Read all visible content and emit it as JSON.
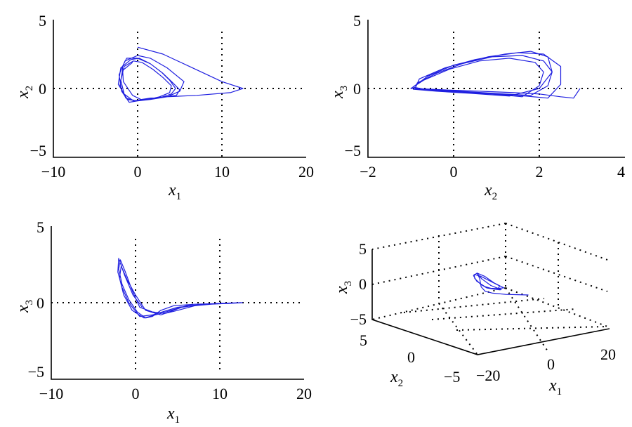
{
  "colors": {
    "trajectory": "#1f1fe0",
    "axes": "#000000"
  },
  "chart_data": [
    {
      "type": "line",
      "xlabel": "x",
      "xsub": "1",
      "ylabel": "x",
      "ysub": "2",
      "xlim": [
        -10,
        20
      ],
      "ylim": [
        -5,
        5
      ],
      "xticks": [
        -10,
        0,
        10,
        20
      ],
      "yticks": [
        -5,
        0,
        5
      ],
      "xtick_labels": [
        "−10",
        "0",
        "10",
        "20"
      ],
      "ytick_labels": [
        "−5",
        "0",
        "5"
      ],
      "grid": "dotted lines at x=0, x=10 and y=0",
      "series": [
        {
          "x": [
            0.0,
            3.0,
            6.5,
            10.0,
            12.5,
            11.0,
            7.0,
            3.5,
            1.5,
            0.4,
            -0.6,
            -1.7,
            -1.8,
            -1.3,
            0.0,
            1.5,
            3.0,
            4.2,
            5.0,
            4.6,
            3.2,
            1.8,
            0.6,
            -0.5,
            -1.6,
            -2.0,
            -1.6,
            -0.5,
            0.5,
            1.8,
            3.0,
            4.0,
            3.8,
            2.6,
            1.2,
            0.0,
            -1.0,
            -1.9,
            -2.2,
            -1.5,
            0.0,
            1.5,
            3.5,
            5.5,
            5.0,
            3.5,
            1.5,
            0.0,
            -1.2,
            -2.3,
            -2.0,
            -0.8,
            0.2,
            1.5,
            2.8,
            3.8,
            4.5,
            4.0,
            2.5,
            1.0,
            -0.2,
            -1.4,
            -2.1,
            -1.8,
            -0.6
          ],
          "y": [
            3.0,
            2.5,
            1.5,
            0.5,
            0.0,
            -0.3,
            -0.5,
            -0.6,
            -0.7,
            -0.8,
            -0.5,
            0.5,
            1.6,
            2.2,
            2.2,
            1.8,
            1.1,
            0.4,
            -0.1,
            -0.5,
            -0.6,
            -0.7,
            -0.8,
            -0.9,
            -0.4,
            0.6,
            1.6,
            2.0,
            1.9,
            1.4,
            0.8,
            0.2,
            -0.3,
            -0.6,
            -0.8,
            -0.9,
            -1.0,
            -0.2,
            1.0,
            2.0,
            2.4,
            2.2,
            1.5,
            0.5,
            -0.2,
            -0.6,
            -0.8,
            -0.9,
            -0.8,
            0.3,
            1.5,
            2.1,
            2.2,
            1.8,
            1.2,
            0.6,
            0.0,
            -0.4,
            -0.7,
            -0.8,
            -0.9,
            -0.7,
            0.2,
            1.3,
            1.9
          ]
        }
      ]
    },
    {
      "type": "line",
      "xlabel": "x",
      "xsub": "2",
      "ylabel": "x",
      "ysub": "3",
      "xlim": [
        -2,
        4
      ],
      "ylim": [
        -5,
        5
      ],
      "xticks": [
        -2,
        0,
        2,
        4
      ],
      "yticks": [
        -5,
        0,
        5
      ],
      "xtick_labels": [
        "−2",
        "0",
        "2",
        "4"
      ],
      "ytick_labels": [
        "−5",
        "0",
        "5"
      ],
      "grid": "dotted lines at x=0, x=2 and y=0",
      "series": [
        {
          "x": [
            2.95,
            2.8,
            2.5,
            2.0,
            1.4,
            0.6,
            -0.2,
            -0.9,
            -0.85,
            -0.4,
            0.2,
            0.9,
            1.6,
            2.1,
            2.3,
            2.2,
            1.8,
            1.2,
            0.4,
            -0.5,
            -1.0,
            -0.7,
            -0.1,
            0.6,
            1.3,
            1.9,
            2.1,
            2.0,
            1.6,
            0.9,
            0.1,
            -0.6,
            -0.95,
            -0.6,
            0.0,
            0.8,
            1.5,
            2.1,
            2.5,
            2.5,
            2.2,
            1.5,
            0.6,
            -0.3,
            -0.9,
            -0.8,
            -0.2,
            0.5,
            1.2,
            1.8,
            2.2,
            2.3,
            2.0,
            1.3,
            0.4,
            -0.4,
            -0.95
          ],
          "y": [
            0.0,
            -0.7,
            -0.6,
            -0.4,
            -0.3,
            -0.2,
            -0.1,
            0.0,
            0.4,
            1.1,
            1.8,
            2.3,
            2.4,
            2.0,
            1.2,
            0.2,
            -0.5,
            -0.4,
            -0.25,
            -0.1,
            0.0,
            0.6,
            1.4,
            2.0,
            2.2,
            1.9,
            1.2,
            0.2,
            -0.6,
            -0.4,
            -0.25,
            -0.1,
            0.1,
            0.9,
            1.7,
            2.3,
            2.6,
            2.5,
            1.6,
            0.3,
            -0.7,
            -0.5,
            -0.3,
            -0.15,
            0.0,
            0.7,
            1.5,
            2.1,
            2.5,
            2.7,
            2.3,
            1.2,
            0.0,
            -0.55,
            -0.35,
            -0.2,
            -0.05
          ]
        }
      ]
    },
    {
      "type": "line",
      "xlabel": "x",
      "xsub": "1",
      "ylabel": "x",
      "ysub": "3",
      "xlim": [
        -10,
        20
      ],
      "ylim": [
        -5,
        5
      ],
      "xticks": [
        -10,
        0,
        10,
        20
      ],
      "yticks": [
        -5,
        0,
        5
      ],
      "xtick_labels": [
        "−10",
        "0",
        "10",
        "20"
      ],
      "ytick_labels": [
        "−5",
        "0",
        "5"
      ],
      "grid": "dotted lines at x=0, x=10 and y=0",
      "series": [
        {
          "x": [
            12.7,
            10.0,
            7.0,
            4.5,
            3.0,
            2.0,
            1.2,
            0.2,
            -0.8,
            -1.6,
            -2.0,
            -1.8,
            -1.2,
            -0.4,
            0.5,
            2.0,
            3.5,
            5.0,
            7.0,
            9.5,
            12.5,
            10.0,
            6.0,
            3.0,
            1.0,
            -0.4,
            -1.4,
            -1.9,
            -1.7,
            -1.0,
            0.0,
            1.2,
            3.0,
            5.5,
            8.0,
            11.0,
            12.7,
            9.0,
            5.0,
            2.0,
            0.5,
            -0.8,
            -1.6,
            -2.1,
            -2.0,
            -1.3,
            -0.3,
            0.8
          ],
          "y": [
            0.0,
            -0.05,
            -0.1,
            -0.2,
            -0.5,
            -0.9,
            -1.0,
            -0.6,
            0.2,
            1.2,
            2.2,
            2.8,
            2.0,
            0.8,
            -0.3,
            -0.6,
            -0.7,
            -0.5,
            -0.2,
            -0.05,
            0.0,
            -0.05,
            -0.2,
            -0.7,
            -1.0,
            -0.5,
            0.5,
            1.6,
            2.4,
            1.5,
            0.5,
            -0.5,
            -0.8,
            -0.3,
            -0.1,
            -0.05,
            0.0,
            -0.1,
            -0.3,
            -0.8,
            -0.9,
            0.0,
            1.0,
            2.0,
            2.9,
            1.8,
            0.5,
            -0.3
          ]
        }
      ]
    },
    {
      "type": "line",
      "projection": "3d",
      "xlabel": "x",
      "xsub": "1",
      "ylabel": "x",
      "ysub": "2",
      "zlabel": "x",
      "zsub": "3",
      "xlim": [
        -20,
        20
      ],
      "ylim": [
        -5,
        5
      ],
      "zlim": [
        -5,
        5
      ],
      "xticks": [
        -20,
        0,
        20
      ],
      "yticks": [
        -5,
        0,
        5
      ],
      "zticks": [
        -5,
        0,
        5
      ],
      "xtick_labels": [
        "−20",
        "0",
        "20"
      ],
      "ytick_labels": [
        "−5",
        "0",
        "5"
      ],
      "ztick_labels": [
        "−5",
        "0",
        "5"
      ],
      "grid": "dotted 3D box grid",
      "series": [
        {
          "x": [
            12.5,
            10.0,
            7.0,
            3.5,
            1.0,
            -0.8,
            -1.8,
            -1.5,
            -0.5,
            1.0,
            3.0,
            5.0,
            4.2,
            2.0,
            0.0,
            -1.5,
            -2.0,
            -1.2,
            0.5,
            2.5,
            4.5,
            3.5,
            1.2,
            -0.6,
            -1.9,
            -1.7,
            -0.3,
            1.5,
            3.5,
            5.5,
            3.0
          ],
          "y": [
            0.0,
            0.5,
            1.2,
            1.5,
            1.0,
            0.2,
            -0.5,
            0.8,
            2.0,
            2.2,
            1.5,
            0.3,
            -0.3,
            -0.6,
            -0.8,
            -0.5,
            1.0,
            2.2,
            2.0,
            1.2,
            0.2,
            -0.4,
            -0.7,
            -0.8,
            0.4,
            1.8,
            2.3,
            1.9,
            1.0,
            0.0,
            -0.6
          ],
          "z": [
            -0.5,
            -0.6,
            -0.7,
            -0.8,
            -0.9,
            -0.5,
            0.8,
            2.2,
            2.6,
            1.8,
            0.6,
            -0.3,
            -0.6,
            -0.8,
            -0.9,
            -0.3,
            1.2,
            2.4,
            2.2,
            1.3,
            0.3,
            -0.5,
            -0.8,
            -0.7,
            0.5,
            2.0,
            2.8,
            2.3,
            1.0,
            0.0,
            -0.6
          ]
        }
      ]
    }
  ]
}
